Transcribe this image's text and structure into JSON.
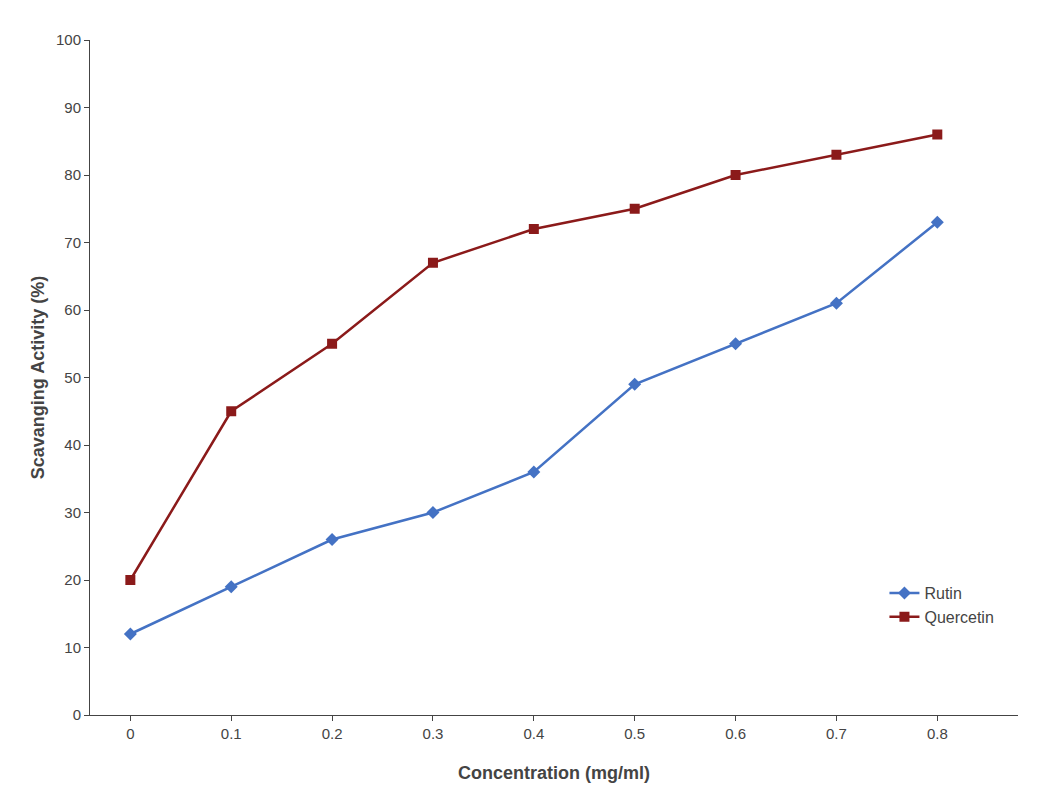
{
  "chart_data": {
    "type": "line",
    "x": [
      0,
      0.1,
      0.2,
      0.3,
      0.4,
      0.5,
      0.6,
      0.7,
      0.8
    ],
    "series": [
      {
        "name": "Rutin",
        "color": "#4472C4",
        "marker": "diamond",
        "values": [
          12,
          19,
          26,
          30,
          36,
          49,
          55,
          61,
          73
        ]
      },
      {
        "name": "Quercetin",
        "color": "#8B1A1A",
        "marker": "square",
        "values": [
          20,
          45,
          55,
          67,
          72,
          75,
          80,
          83,
          86
        ]
      }
    ],
    "xlabel": "Concentration (mg/ml)",
    "ylabel": "Scavanging Activity (%)",
    "xlim": [
      -0.04,
      0.88
    ],
    "ylim": [
      0,
      100
    ],
    "xticks": [
      0,
      0.1,
      0.2,
      0.3,
      0.4,
      0.5,
      0.6,
      0.7,
      0.8
    ],
    "yticks": [
      0,
      10,
      20,
      30,
      40,
      50,
      60,
      70,
      80,
      90,
      100
    ],
    "grid": false,
    "legend": "lower right"
  }
}
